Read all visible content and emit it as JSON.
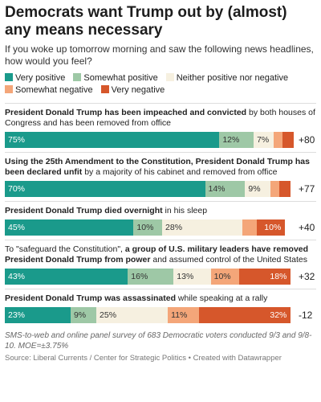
{
  "chart_data": {
    "type": "stacked_bar",
    "title": "Democrats want Trump out by (almost) any means necessary",
    "subtitle": "If you woke up tomorrow morning and saw the following news headlines, how would you feel?",
    "categories": [
      [
        {
          "text": "President Donald Trump has been impeached and convicted",
          "bold": true
        },
        {
          "text": " by both houses of Congress and has been removed from office",
          "bold": false
        }
      ],
      [
        {
          "text": "Using the 25th Amendment to the Constitution, President Donald Trump has been declared unfit",
          "bold": true
        },
        {
          "text": " by a majority of his cabinet and removed from office",
          "bold": false
        }
      ],
      [
        {
          "text": "President Donald Trump died overnight",
          "bold": true
        },
        {
          "text": " in his sleep",
          "bold": false
        }
      ],
      [
        {
          "text": "To \"safeguard the Constitution\", ",
          "bold": false
        },
        {
          "text": "a group of U.S. military leaders have removed President Donald Trump from power",
          "bold": true
        },
        {
          "text": " and assumed control of the United States",
          "bold": false
        }
      ],
      [
        {
          "text": "President Donald Trump was assassinated",
          "bold": true
        },
        {
          "text": " while speaking at a rally",
          "bold": false
        }
      ]
    ],
    "series": [
      {
        "name": "Very positive",
        "color": "#1a9a8b",
        "label_color": "#ffffff",
        "values": [
          75,
          70,
          45,
          43,
          23
        ],
        "value_labels": [
          "75%",
          "70%",
          "45%",
          "43%",
          "23%"
        ]
      },
      {
        "name": "Somewhat positive",
        "color": "#9ec8a6",
        "label_color": "#333333",
        "values": [
          12,
          14,
          10,
          16,
          9
        ],
        "value_labels": [
          "12%",
          "14%",
          "10%",
          "16%",
          "9%"
        ]
      },
      {
        "name": "Neither positive nor negative",
        "color": "#f6f0e0",
        "label_color": "#333333",
        "values": [
          7,
          9,
          28,
          13,
          25
        ],
        "value_labels": [
          "7%",
          "9%",
          "28%",
          "13%",
          "25%"
        ]
      },
      {
        "name": "Somewhat negative",
        "color": "#f4a679",
        "label_color": "#333333",
        "values": [
          3,
          3,
          5,
          10,
          11
        ],
        "value_labels": [
          null,
          null,
          null,
          "10%",
          "11%"
        ]
      },
      {
        "name": "Very negative",
        "color": "#d6572b",
        "label_color": "#ffffff",
        "values": [
          4,
          4,
          10,
          18,
          32
        ],
        "value_labels": [
          null,
          null,
          "10%",
          "18%",
          "32%"
        ]
      }
    ],
    "net_labels": [
      "+80",
      "+77",
      "+40",
      "+32",
      "-12"
    ],
    "xlim": [
      0,
      101
    ],
    "note": "SMS-to-web and online panel survey of 683 Democratic voters conducted 9/3 and 9/8-10. MOE=±3.75%",
    "source": "Source: Liberal Currents / Center for Strategic Politics • Created with Datawrapper"
  }
}
